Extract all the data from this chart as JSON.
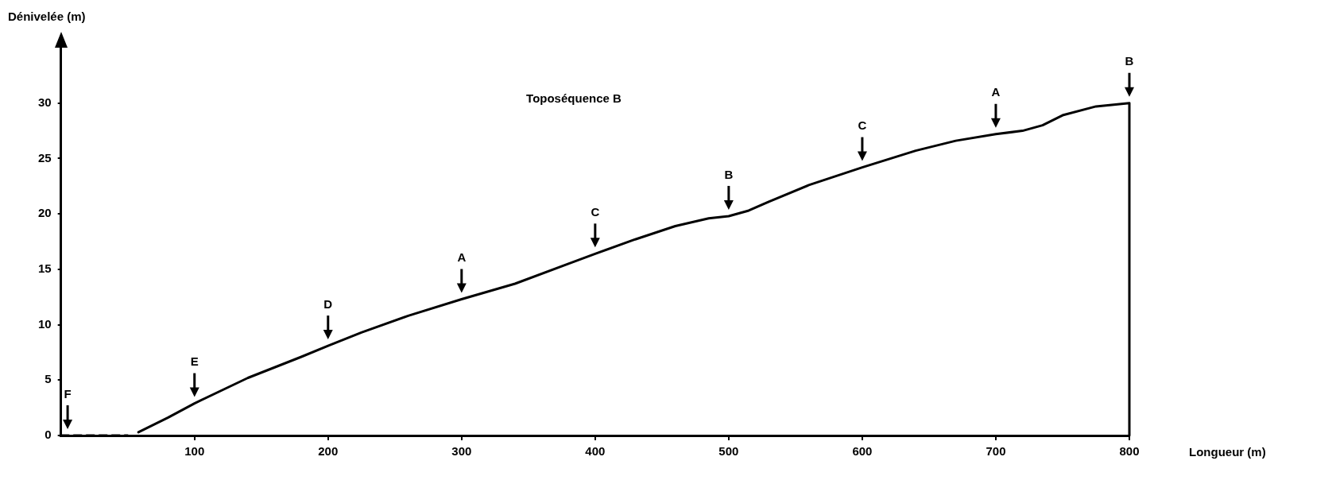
{
  "chart_data": {
    "type": "line",
    "title": "Toposéquence B",
    "xlabel": "Longueur (m)",
    "ylabel": "Dénivelée (m)",
    "xlim": [
      0,
      800
    ],
    "ylim": [
      0,
      35
    ],
    "xticks": [
      100,
      200,
      300,
      400,
      500,
      600,
      700,
      800
    ],
    "yticks": [
      0,
      5,
      10,
      15,
      20,
      25,
      30
    ],
    "grid": false,
    "legend": false,
    "marker": "none",
    "series": [
      {
        "color": "#000000",
        "x": [
          58,
          80,
          100,
          140,
          180,
          200,
          225,
          260,
          300,
          340,
          380,
          400,
          430,
          460,
          485,
          500,
          515,
          530,
          560,
          600,
          640,
          670,
          700,
          720,
          735,
          750,
          775,
          800,
          800
        ],
        "values": [
          0.3,
          1.6,
          2.9,
          5.2,
          7.1,
          8.1,
          9.3,
          10.8,
          12.3,
          13.7,
          15.5,
          16.4,
          17.7,
          18.9,
          19.6,
          19.8,
          20.3,
          21.1,
          22.6,
          24.2,
          25.7,
          26.6,
          27.2,
          27.5,
          28,
          28.9,
          29.7,
          30,
          0
        ]
      },
      {
        "color": "#000000",
        "line_style": "dashed",
        "x": [
          0,
          50
        ],
        "values": [
          0,
          0
        ]
      }
    ],
    "annotations": [
      {
        "text": "F",
        "x": 5,
        "y": 0
      },
      {
        "text": "E",
        "x": 100,
        "y": 2.9
      },
      {
        "text": "D",
        "x": 200,
        "y": 8.1
      },
      {
        "text": "A",
        "x": 300,
        "y": 12.3
      },
      {
        "text": "C",
        "x": 400,
        "y": 16.4
      },
      {
        "text": "B",
        "x": 500,
        "y": 19.8
      },
      {
        "text": "C",
        "x": 600,
        "y": 24.2
      },
      {
        "text": "A",
        "x": 700,
        "y": 27.2
      },
      {
        "text": "B",
        "x": 800,
        "y": 30
      }
    ]
  }
}
